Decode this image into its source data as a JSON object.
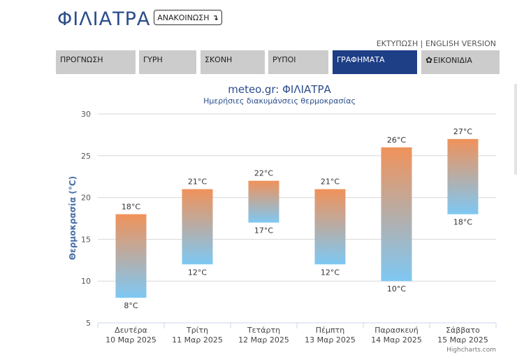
{
  "header": {
    "title": "ΦΙΛΙΑΤΡΑ",
    "announce_label": "ΑΝΑΚΟΙΝΩΣΗ",
    "announce_icon": "↴",
    "print_label": "ΕΚΤΥΠΩΣΗ",
    "separator": " | ",
    "english_label": "ENGLISH VERSION"
  },
  "tabs": [
    {
      "label": "ΠΡΟΓΝΩΣΗ",
      "active": false
    },
    {
      "label": "ΓΥΡΗ",
      "active": false
    },
    {
      "label": "ΣΚΟΝΗ",
      "active": false
    },
    {
      "label": "ΡΥΠΟΙ",
      "active": false
    },
    {
      "label": "ΓΡΑΦΗΜΑΤΑ",
      "active": true
    },
    {
      "label": "ΕΙΚΟΝΙΔΙΑ",
      "active": false,
      "icon": "gear-icon"
    }
  ],
  "chart_data": {
    "type": "columnrange",
    "title": "meteo.gr: ΦΙΛΙΑΤΡΑ",
    "subtitle": "Ημερήσιες διακυμάνσεις θερμοκρασίας",
    "ylabel": "Θερμοκρασία (°C)",
    "ylim": [
      5,
      30
    ],
    "yticks": [
      5,
      10,
      15,
      20,
      25,
      30
    ],
    "grid": true,
    "categories": [
      {
        "day": "Δευτέρα",
        "date": "10 Μαρ 2025"
      },
      {
        "day": "Τρίτη",
        "date": "11 Μαρ 2025"
      },
      {
        "day": "Τετάρτη",
        "date": "12 Μαρ 2025"
      },
      {
        "day": "Πέμπτη",
        "date": "13 Μαρ 2025"
      },
      {
        "day": "Παρασκευή",
        "date": "14 Μαρ 2025"
      },
      {
        "day": "Σάββατο",
        "date": "15 Μαρ 2025"
      }
    ],
    "low": [
      8,
      12,
      17,
      12,
      10,
      18
    ],
    "high": [
      18,
      21,
      22,
      21,
      26,
      27
    ],
    "unit": "°C",
    "colors": {
      "top": "#f0925a",
      "bottom": "#7ec8f4",
      "title": "#2a4d8c",
      "subtitle": "#2a4d8c"
    },
    "credits": "Highcharts.com"
  }
}
